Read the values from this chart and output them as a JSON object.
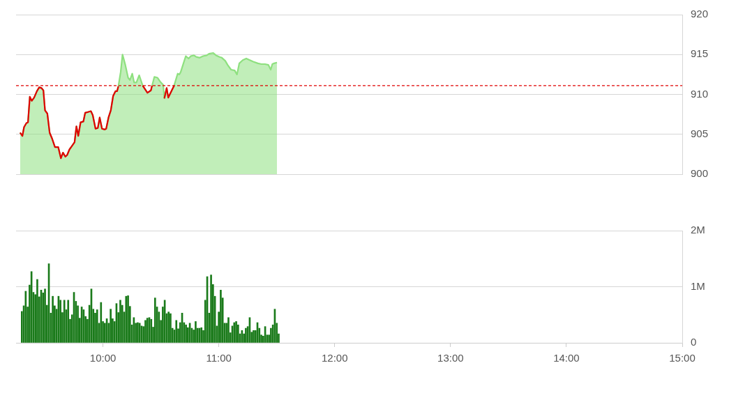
{
  "chart_data": [
    {
      "type": "area",
      "xlim": [
        9.25,
        15
      ],
      "ylim": [
        900,
        920
      ],
      "yticks": [
        900,
        905,
        910,
        915,
        920
      ],
      "grid": "y",
      "tick_labels": "y",
      "ref_lines": [
        {
          "axis": "y",
          "value": 911.1,
          "color": "#e00000",
          "line_style": "dashed"
        }
      ],
      "series": [
        {
          "type": "line",
          "color": "#e00000",
          "x": [
            9.285,
            9.305,
            9.319,
            9.339,
            9.353,
            9.369,
            9.386,
            9.406,
            9.43,
            9.45,
            9.47,
            9.486,
            9.5,
            9.52,
            9.54,
            9.56,
            9.586,
            9.614,
            9.637,
            9.655,
            9.675,
            9.691,
            9.711,
            9.731,
            9.755,
            9.771,
            9.787,
            9.807,
            9.831,
            9.847,
            9.872,
            9.896,
            9.912,
            9.936,
            9.956,
            9.972,
            9.992,
            10.016,
            10.028,
            10.048,
            10.068,
            10.088,
            10.108,
            10.122,
            10.133,
            10.153,
            10.169,
            10.193,
            10.217,
            10.233,
            10.253,
            10.269,
            10.289,
            10.313,
            10.343,
            10.384,
            10.414,
            10.424,
            10.444,
            10.47,
            10.494,
            10.52,
            10.53,
            10.55,
            10.564,
            10.594,
            10.614
          ],
          "values": [
            905.2,
            904.8,
            905.9,
            906.4,
            906.5,
            909.7,
            909.2,
            909.6,
            910.4,
            910.9,
            910.8,
            910.5,
            908.0,
            907.6,
            905.2,
            904.5,
            903.4,
            903.4,
            902.0,
            902.7,
            902.2,
            902.4,
            903.1,
            903.5,
            904.0,
            906.0,
            904.8,
            906.5,
            906.6,
            907.7,
            907.8,
            907.9,
            907.4,
            905.7,
            905.8,
            907.1,
            905.7,
            905.6,
            905.7,
            907.1,
            908.0,
            909.8,
            910.4,
            910.4,
            911.0,
            null,
            null,
            null,
            null,
            null,
            null,
            null,
            null,
            null,
            911.1,
            910.2,
            910.5,
            911.1,
            null,
            null,
            null,
            null,
            909.5,
            910.8,
            909.6,
            910.5,
            911.1
          ]
        },
        {
          "color": "#8ee07f",
          "x": [
            9.285,
            9.305,
            9.319,
            9.339,
            9.353,
            9.369,
            9.386,
            9.406,
            9.43,
            9.45,
            9.47,
            9.486,
            9.5,
            9.52,
            9.54,
            9.56,
            9.586,
            9.614,
            9.637,
            9.655,
            9.675,
            9.691,
            9.711,
            9.731,
            9.755,
            9.771,
            9.787,
            9.807,
            9.831,
            9.847,
            9.872,
            9.896,
            9.912,
            9.936,
            9.956,
            9.972,
            9.992,
            10.016,
            10.028,
            10.048,
            10.068,
            10.088,
            10.108,
            10.122,
            10.133,
            10.153,
            10.169,
            10.193,
            10.217,
            10.233,
            10.253,
            10.269,
            10.289,
            10.313,
            10.343,
            10.384,
            10.414,
            10.424,
            10.444,
            10.47,
            10.494,
            10.52,
            10.53,
            10.55,
            10.564,
            10.594,
            10.614,
            10.645,
            10.659,
            10.671,
            10.695,
            10.715,
            10.739,
            10.759,
            10.785,
            10.805,
            10.835,
            10.865,
            10.896,
            10.916,
            10.952,
            10.976,
            11.006,
            11.026,
            11.056,
            11.076,
            11.106,
            11.137,
            11.157,
            11.177,
            11.207,
            11.237,
            11.267,
            11.297,
            11.337,
            11.367,
            11.398,
            11.428,
            11.448,
            11.462,
            11.478,
            11.502
          ],
          "values": [
            905.2,
            904.8,
            905.9,
            906.4,
            906.5,
            909.7,
            909.2,
            909.6,
            910.4,
            910.9,
            910.8,
            910.5,
            908.0,
            907.6,
            905.2,
            904.5,
            903.4,
            903.4,
            902.0,
            902.7,
            902.2,
            902.4,
            903.1,
            903.5,
            904.0,
            906.0,
            904.8,
            906.5,
            906.6,
            907.7,
            907.8,
            907.9,
            907.4,
            905.7,
            905.8,
            907.1,
            905.7,
            905.6,
            905.7,
            907.1,
            908.0,
            909.8,
            910.4,
            910.4,
            911.0,
            912.8,
            915.0,
            913.7,
            912.1,
            911.8,
            912.6,
            911.5,
            911.5,
            912.4,
            911.1,
            910.2,
            910.5,
            911.1,
            912.2,
            912.1,
            911.6,
            911.2,
            909.5,
            910.8,
            909.6,
            910.5,
            911.1,
            912.6,
            912.5,
            912.8,
            913.9,
            914.8,
            914.5,
            914.8,
            914.9,
            914.7,
            914.6,
            914.8,
            914.9,
            915.1,
            915.2,
            914.9,
            914.7,
            914.6,
            914.2,
            913.7,
            913.1,
            913.0,
            912.5,
            913.9,
            914.3,
            914.5,
            914.3,
            914.1,
            913.9,
            913.8,
            913.8,
            913.7,
            913.1,
            913.8,
            913.9,
            914.0
          ]
        }
      ]
    },
    {
      "type": "bar",
      "xlim": [
        9.25,
        15
      ],
      "xticks": [
        {
          "value": 10,
          "label": "10:00"
        },
        {
          "value": 11,
          "label": "11:00"
        },
        {
          "value": 12,
          "label": "12:00"
        },
        {
          "value": 13,
          "label": "13:00"
        },
        {
          "value": 14,
          "label": "14:00"
        },
        {
          "value": 15,
          "label": "15:00"
        }
      ],
      "ylim": [
        0,
        2
      ],
      "yticks": [
        {
          "value": 0,
          "label": "0"
        },
        {
          "value": 1,
          "label": "1M"
        },
        {
          "value": 2,
          "label": "2M"
        }
      ],
      "grid": "y",
      "series": [
        {
          "color": "#1a7a1a",
          "x": [
            9.3,
            9.3167,
            9.3333,
            9.35,
            9.3667,
            9.3833,
            9.4,
            9.4167,
            9.4333,
            9.45,
            9.4667,
            9.4833,
            9.5,
            9.5167,
            9.5333,
            9.55,
            9.5667,
            9.5833,
            9.6,
            9.6167,
            9.6333,
            9.65,
            9.6667,
            9.6833,
            9.7,
            9.7167,
            9.7333,
            9.75,
            9.7667,
            9.7833,
            9.8,
            9.8167,
            9.8333,
            9.85,
            9.8667,
            9.8833,
            9.9,
            9.9167,
            9.9333,
            9.95,
            9.9667,
            9.9833,
            10.0,
            10.0167,
            10.0333,
            10.05,
            10.0667,
            10.0833,
            10.1,
            10.1167,
            10.1333,
            10.15,
            10.1667,
            10.1833,
            10.2,
            10.2167,
            10.2333,
            10.25,
            10.2667,
            10.2833,
            10.3,
            10.3167,
            10.3333,
            10.35,
            10.3667,
            10.3833,
            10.4,
            10.4167,
            10.4333,
            10.45,
            10.4667,
            10.4833,
            10.5,
            10.5167,
            10.5333,
            10.55,
            10.5667,
            10.5833,
            10.6,
            10.6167,
            10.6333,
            10.65,
            10.6667,
            10.6833,
            10.7,
            10.7167,
            10.7333,
            10.75,
            10.7667,
            10.7833,
            10.8,
            10.8167,
            10.8333,
            10.85,
            10.8667,
            10.8833,
            10.9,
            10.9167,
            10.9333,
            10.95,
            10.9667,
            10.9833,
            11.0,
            11.0167,
            11.0333,
            11.05,
            11.0667,
            11.0833,
            11.1,
            11.1167,
            11.1333,
            11.15,
            11.1667,
            11.1833,
            11.2,
            11.2167,
            11.2333,
            11.25,
            11.2667,
            11.2833,
            11.3,
            11.3167,
            11.3333,
            11.35,
            11.3667,
            11.3833,
            11.4,
            11.4167,
            11.4333,
            11.45,
            11.4667,
            11.4833,
            11.5,
            11.5167
          ],
          "values": [
            0.56,
            0.66,
            0.92,
            0.64,
            1.03,
            1.27,
            0.9,
            0.86,
            1.13,
            0.82,
            0.94,
            0.89,
            0.96,
            0.67,
            1.41,
            0.53,
            0.83,
            0.66,
            0.6,
            0.83,
            0.76,
            0.54,
            0.76,
            0.59,
            0.76,
            0.42,
            0.5,
            0.9,
            0.74,
            0.66,
            0.44,
            0.64,
            0.59,
            0.47,
            0.42,
            0.67,
            0.96,
            0.6,
            0.53,
            0.59,
            0.35,
            0.72,
            0.38,
            0.35,
            0.43,
            0.35,
            0.6,
            0.43,
            0.38,
            0.7,
            0.54,
            0.76,
            0.67,
            0.55,
            0.83,
            0.84,
            0.65,
            0.32,
            0.45,
            0.35,
            0.36,
            0.35,
            0.3,
            0.29,
            0.4,
            0.44,
            0.45,
            0.42,
            0.28,
            0.8,
            0.64,
            0.55,
            0.4,
            0.64,
            0.76,
            0.52,
            0.55,
            0.52,
            0.26,
            0.23,
            0.4,
            0.25,
            0.36,
            0.53,
            0.36,
            0.32,
            0.27,
            0.35,
            0.26,
            0.23,
            0.38,
            0.26,
            0.26,
            0.27,
            0.22,
            0.76,
            1.18,
            0.53,
            1.21,
            1.04,
            0.83,
            0.3,
            0.55,
            0.94,
            0.8,
            0.35,
            0.35,
            0.45,
            0.18,
            0.3,
            0.36,
            0.38,
            0.32,
            0.16,
            0.22,
            0.16,
            0.26,
            0.29,
            0.45,
            0.19,
            0.22,
            0.22,
            0.36,
            0.26,
            0.14,
            0.12,
            0.29,
            0.14,
            0.14,
            0.26,
            0.32,
            0.6,
            0.35,
            0.16
          ]
        }
      ]
    }
  ]
}
